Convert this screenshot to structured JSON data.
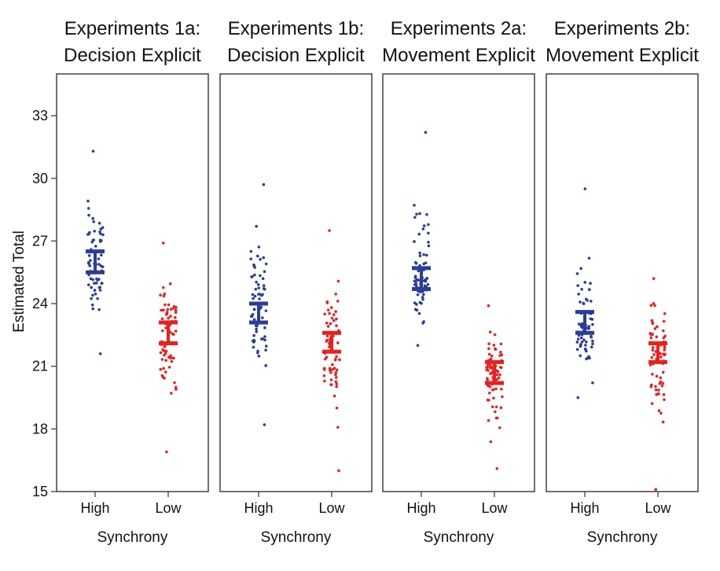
{
  "chart_data": {
    "type": "scatter",
    "ylabel": "Estimated Total",
    "xlabel": "Synchrony",
    "ylim": [
      15,
      35
    ],
    "yticks": [
      15,
      18,
      21,
      24,
      27,
      30,
      33
    ],
    "yticks_labels": [
      "15",
      "18",
      "21",
      "24",
      "27",
      "30",
      "33"
    ],
    "categories": [
      "High",
      "Low"
    ],
    "colors": {
      "High": "#2a3d9a",
      "Low": "#e8201f"
    },
    "panels": [
      {
        "title_line1": "Experiments 1a:",
        "title_line2": "Decision Explicit",
        "groups": [
          {
            "name": "High",
            "mean": 26.0,
            "ci": [
              25.5,
              26.5
            ],
            "range": [
              21.6,
              31.3
            ],
            "n": 70
          },
          {
            "name": "Low",
            "mean": 22.6,
            "ci": [
              22.1,
              23.1
            ],
            "range": [
              16.9,
              26.9
            ],
            "n": 70
          }
        ]
      },
      {
        "title_line1": "Experiments 1b:",
        "title_line2": "Decision Explicit",
        "groups": [
          {
            "name": "High",
            "mean": 23.5,
            "ci": [
              23.1,
              24.0
            ],
            "range": [
              18.2,
              29.7
            ],
            "n": 70
          },
          {
            "name": "Low",
            "mean": 22.1,
            "ci": [
              21.7,
              22.6
            ],
            "range": [
              16.0,
              27.5
            ],
            "n": 70
          }
        ]
      },
      {
        "title_line1": "Experiments 2a:",
        "title_line2": "Movement Explicit",
        "groups": [
          {
            "name": "High",
            "mean": 25.2,
            "ci": [
              24.7,
              25.7
            ],
            "range": [
              22.0,
              32.2
            ],
            "n": 70
          },
          {
            "name": "Low",
            "mean": 20.7,
            "ci": [
              20.2,
              21.2
            ],
            "range": [
              16.1,
              23.9
            ],
            "n": 70
          }
        ]
      },
      {
        "title_line1": "Experiments 2b:",
        "title_line2": "Movement Explicit",
        "groups": [
          {
            "name": "High",
            "mean": 23.1,
            "ci": [
              22.6,
              23.6
            ],
            "range": [
              19.5,
              29.5
            ],
            "n": 70
          },
          {
            "name": "Low",
            "mean": 21.6,
            "ci": [
              21.2,
              22.1
            ],
            "range": [
              15.1,
              25.2
            ],
            "n": 70
          }
        ]
      }
    ]
  }
}
